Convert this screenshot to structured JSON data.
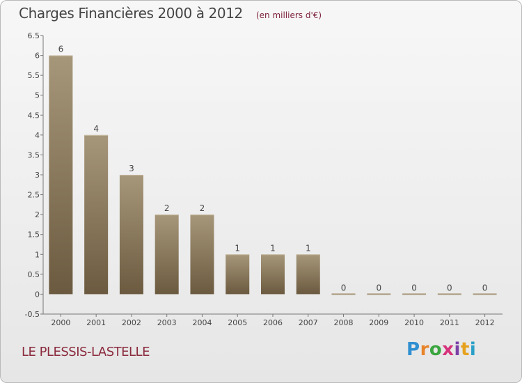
{
  "chart_data": {
    "type": "bar",
    "title": "Charges Financières 2000 à 2012",
    "subtitle": "(en milliers d'€)",
    "categories": [
      "2000",
      "2001",
      "2002",
      "2003",
      "2004",
      "2005",
      "2006",
      "2007",
      "2008",
      "2009",
      "2010",
      "2011",
      "2012"
    ],
    "values": [
      6,
      4,
      3,
      2,
      2,
      1,
      1,
      1,
      0,
      0,
      0,
      0,
      0
    ],
    "data_labels": [
      "6",
      "4",
      "3",
      "2",
      "2",
      "1",
      "1",
      "1",
      "0",
      "0",
      "0",
      "0",
      "0"
    ],
    "ylim": [
      -0.5,
      6.5
    ],
    "yticks": [
      "-0.5",
      "0",
      "0.5",
      "1",
      "1.5",
      "2",
      "2.5",
      "3",
      "3.5",
      "4",
      "4.5",
      "5",
      "5.5",
      "6",
      "6.5"
    ],
    "ytick_values": [
      -0.5,
      0,
      0.5,
      1,
      1.5,
      2,
      2.5,
      3,
      3.5,
      4,
      4.5,
      5,
      5.5,
      6,
      6.5
    ],
    "grid": false,
    "bar_color_top": "#a7977a",
    "bar_color_bottom": "#6b5a3f"
  },
  "commune": "LE PLESSIS-LASTELLE",
  "logo": {
    "letters": [
      "P",
      "r",
      "o",
      "x",
      "i",
      "t",
      "i"
    ]
  }
}
